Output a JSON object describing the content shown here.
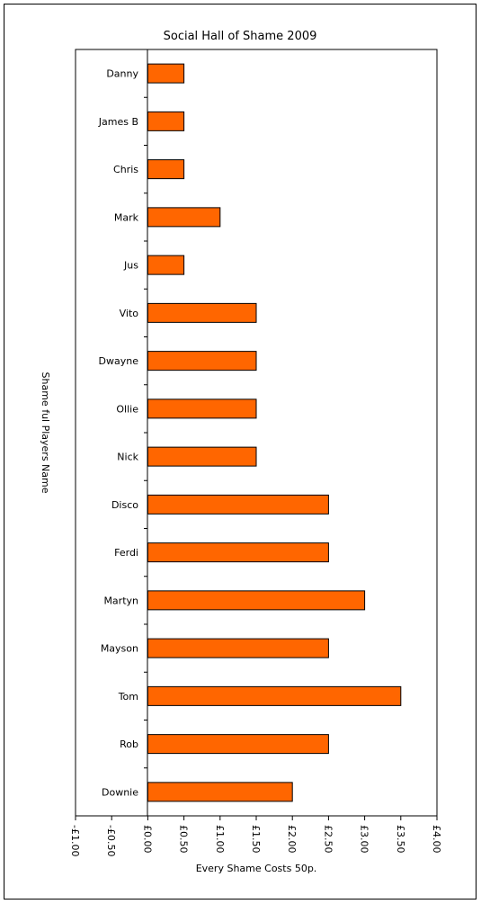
{
  "chart_data": {
    "type": "bar",
    "orientation": "horizontal",
    "title": "Social Hall of Shame 2009",
    "xlabel": "Every Shame Costs 50p.",
    "ylabel": "Shame ful Players Name",
    "categories": [
      "Danny",
      "James B",
      "Chris",
      "Mark",
      "Jus",
      "Vito",
      "Dwayne",
      "Ollie",
      "Nick",
      "Disco",
      "Ferdi",
      "Martyn",
      "Mayson",
      "Tom",
      "Rob",
      "Downie"
    ],
    "values": [
      0.5,
      0.5,
      0.5,
      1.0,
      0.5,
      1.5,
      1.5,
      1.5,
      1.5,
      2.5,
      2.5,
      3.0,
      2.5,
      3.5,
      2.5,
      2.0
    ],
    "xlim": [
      -1.0,
      4.0
    ],
    "x_ticks": [
      -1.0,
      -0.5,
      0.0,
      0.5,
      1.0,
      1.5,
      2.0,
      2.5,
      3.0,
      3.5,
      4.0
    ],
    "x_tick_labels": [
      "-£1.00",
      "-£0.50",
      "£0.00",
      "£0.50",
      "£1.00",
      "£1.50",
      "£2.00",
      "£2.50",
      "£3.00",
      "£3.50",
      "£4.00"
    ],
    "grid": false,
    "legend": "none",
    "bar_color": "#ff6600",
    "bar_border_color": "#000000"
  }
}
